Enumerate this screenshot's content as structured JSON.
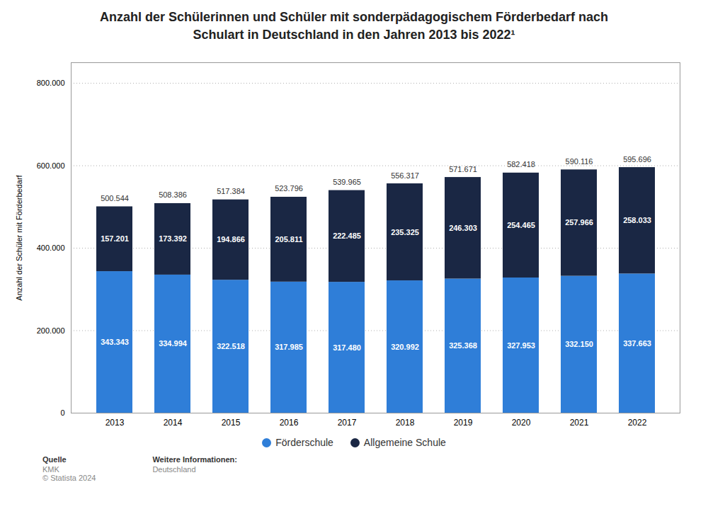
{
  "chart_data": {
    "type": "bar",
    "stacked": true,
    "title": "Anzahl der Schülerinnen und Schüler mit sonderpädagogischem Förderbedarf nach\nSchulart in Deutschland in den Jahren 2013 bis 2022¹",
    "y_label": "Anzahl der Schüler mit Förderbedarf",
    "categories": [
      "2013",
      "2014",
      "2015",
      "2016",
      "2017",
      "2018",
      "2019",
      "2020",
      "2021",
      "2022"
    ],
    "series": [
      {
        "name": "Förderschule",
        "color": "#2f7ed8",
        "values": [
          343343,
          334994,
          322518,
          317985,
          317480,
          320992,
          325368,
          327953,
          332150,
          337663
        ],
        "value_labels": [
          "343.343",
          "334.994",
          "322.518",
          "317.985",
          "317.480",
          "320.992",
          "325.368",
          "327.953",
          "332.150",
          "337.663"
        ]
      },
      {
        "name": "Allgemeine Schule",
        "color": "#1a2744",
        "values": [
          157201,
          173392,
          194866,
          205811,
          222485,
          235325,
          246303,
          254465,
          257966,
          258033
        ],
        "value_labels": [
          "157.201",
          "173.392",
          "194.866",
          "205.811",
          "222.485",
          "235.325",
          "246.303",
          "254.465",
          "257.966",
          "258.033"
        ]
      }
    ],
    "totals": [
      500544,
      508386,
      517384,
      523796,
      539965,
      556317,
      571671,
      582418,
      590116,
      595696
    ],
    "total_labels": [
      "500.544",
      "508.386",
      "517.384",
      "523.796",
      "539.965",
      "556.317",
      "571.671",
      "582.418",
      "590.116",
      "595.696"
    ],
    "ylim": [
      0,
      850000
    ],
    "yticks": [
      0,
      {
        "value": 200000,
        "label": "200.000"
      },
      {
        "value": 400000,
        "label": "400.000"
      },
      {
        "value": 600000,
        "label": "600.000"
      },
      {
        "value": 800000,
        "label": "800.000"
      }
    ],
    "grid": true,
    "legend": "bottom",
    "data_labels": true,
    "annotations": [
      {
        "title": "Quelle",
        "lines": [
          "KMK",
          "© Statista 2024"
        ]
      },
      {
        "title": "Weitere Informationen:",
        "lines": [
          "Deutschland"
        ]
      }
    ]
  }
}
